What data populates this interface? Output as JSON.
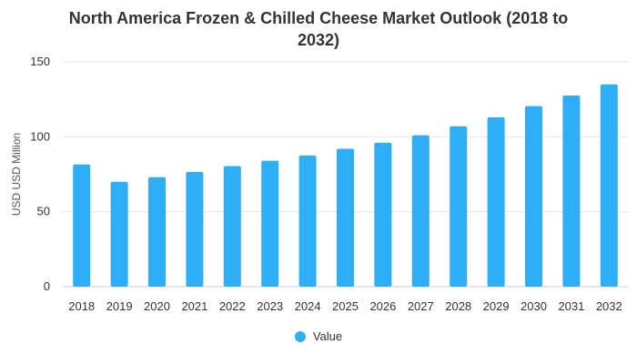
{
  "chart_data": {
    "type": "bar",
    "title_line1": "North America Frozen & Chilled Cheese Market Outlook (2018 to",
    "title_line2": "2032)",
    "ylabel": "USD USD Million",
    "xlabel": "",
    "categories": [
      "2018",
      "2019",
      "2020",
      "2021",
      "2022",
      "2023",
      "2024",
      "2025",
      "2026",
      "2027",
      "2028",
      "2029",
      "2030",
      "2031",
      "2032"
    ],
    "series": [
      {
        "name": "Value",
        "values": [
          81.5,
          70,
          73,
          76.5,
          80.5,
          84,
          87.5,
          92,
          96,
          101,
          107,
          113,
          120.5,
          127.5,
          135
        ]
      }
    ],
    "ylim": [
      0,
      150
    ],
    "yticks": [
      0,
      50,
      100,
      150
    ],
    "grid": true,
    "legend_position": "bottom",
    "bar_color": "#2eaef6"
  }
}
